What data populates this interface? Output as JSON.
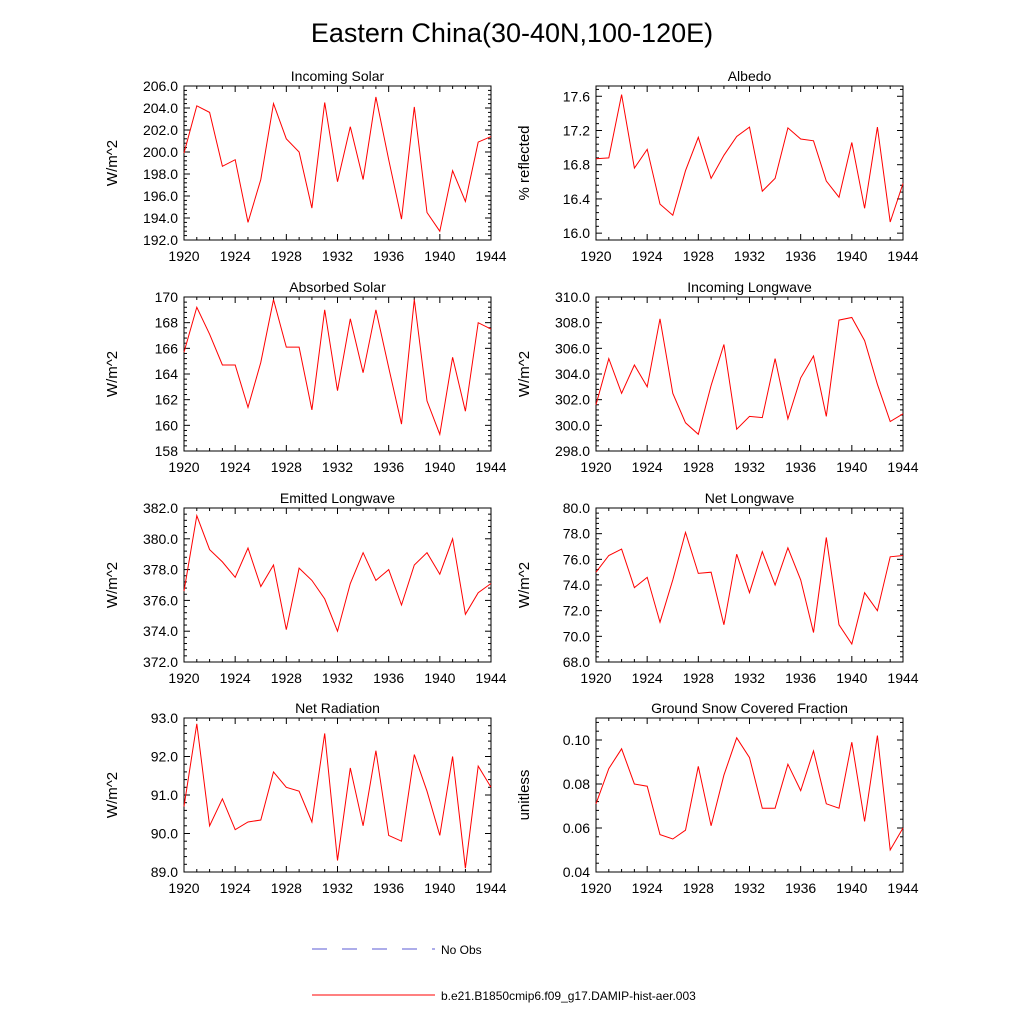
{
  "figure": {
    "title": "Eastern China(30-40N,100-120E)",
    "legend": [
      {
        "label": "No Obs",
        "color": "#5b5bd6",
        "style": "dashed"
      },
      {
        "label": "b.e21.B1850cmip6.f09_g17.DAMIP-hist-aer.003",
        "color": "#ff0000",
        "style": "solid"
      }
    ]
  },
  "chart_data": [
    {
      "type": "line",
      "title": "Incoming Solar",
      "ylabel": "W/m^2",
      "xlim": [
        1920,
        1944
      ],
      "ylim": [
        192.0,
        206.0
      ],
      "xticks": [
        1920,
        1924,
        1928,
        1932,
        1936,
        1940,
        1944
      ],
      "xtick_labels": [
        "1920",
        "1924",
        "1928",
        "1932",
        "1936",
        "1940",
        "1944"
      ],
      "yticks": [
        192,
        194,
        196,
        198,
        200,
        202,
        204,
        206
      ],
      "ytick_labels": [
        "192.0",
        "194.0",
        "196.0",
        "198.0",
        "200.0",
        "202.0",
        "204.0",
        "206.0"
      ],
      "x": [
        1920,
        1921,
        1922,
        1923,
        1924,
        1925,
        1926,
        1927,
        1928,
        1929,
        1930,
        1931,
        1932,
        1933,
        1934,
        1935,
        1936,
        1937,
        1938,
        1939,
        1940,
        1941,
        1942,
        1943,
        1944
      ],
      "series": [
        {
          "name": "b.e21.B1850cmip6.f09_g17.DAMIP-hist-aer.003",
          "color": "#ff0000",
          "values": [
            199.9,
            204.2,
            203.6,
            198.7,
            199.3,
            193.6,
            197.5,
            204.4,
            201.2,
            200.0,
            194.9,
            204.5,
            197.3,
            202.3,
            197.5,
            205.0,
            199.3,
            193.9,
            204.1,
            194.5,
            192.8,
            198.3,
            195.5,
            200.9,
            201.4
          ]
        }
      ]
    },
    {
      "type": "line",
      "title": "Albedo",
      "ylabel": "% reflected",
      "xlim": [
        1920,
        1944
      ],
      "ylim": [
        15.92,
        17.72
      ],
      "xticks": [
        1920,
        1924,
        1928,
        1932,
        1936,
        1940,
        1944
      ],
      "xtick_labels": [
        "1920",
        "1924",
        "1928",
        "1932",
        "1936",
        "1940",
        "1944"
      ],
      "yticks": [
        16.0,
        16.4,
        16.8,
        17.2,
        17.6
      ],
      "ytick_labels": [
        "16.0",
        "16.4",
        "16.8",
        "17.2",
        "17.6"
      ],
      "x": [
        1920,
        1921,
        1922,
        1923,
        1924,
        1925,
        1926,
        1927,
        1928,
        1929,
        1930,
        1931,
        1932,
        1933,
        1934,
        1935,
        1936,
        1937,
        1938,
        1939,
        1940,
        1941,
        1942,
        1943,
        1944
      ],
      "series": [
        {
          "name": "b.e21.B1850cmip6.f09_g17.DAMIP-hist-aer.003",
          "color": "#ff0000",
          "values": [
            16.87,
            16.88,
            17.62,
            16.76,
            16.98,
            16.34,
            16.21,
            16.73,
            17.12,
            16.64,
            16.91,
            17.13,
            17.24,
            16.49,
            16.64,
            17.23,
            17.1,
            17.08,
            16.61,
            16.42,
            17.06,
            16.29,
            17.24,
            16.13,
            16.58
          ]
        }
      ]
    },
    {
      "type": "line",
      "title": "Absorbed Solar",
      "ylabel": "W/m^2",
      "xlim": [
        1920,
        1944
      ],
      "ylim": [
        158,
        170
      ],
      "xticks": [
        1920,
        1924,
        1928,
        1932,
        1936,
        1940,
        1944
      ],
      "xtick_labels": [
        "1920",
        "1924",
        "1928",
        "1932",
        "1936",
        "1940",
        "1944"
      ],
      "yticks": [
        158,
        160,
        162,
        164,
        166,
        168,
        170
      ],
      "ytick_labels": [
        "158",
        "160",
        "162",
        "164",
        "166",
        "168",
        "170"
      ],
      "x": [
        1920,
        1921,
        1922,
        1923,
        1924,
        1925,
        1926,
        1927,
        1928,
        1929,
        1930,
        1931,
        1932,
        1933,
        1934,
        1935,
        1936,
        1937,
        1938,
        1939,
        1940,
        1941,
        1942,
        1943,
        1944
      ],
      "series": [
        {
          "name": "b.e21.B1850cmip6.f09_g17.DAMIP-hist-aer.003",
          "color": "#ff0000",
          "values": [
            165.7,
            169.2,
            167.1,
            164.7,
            164.7,
            161.4,
            164.9,
            169.8,
            166.1,
            166.1,
            161.2,
            169.0,
            162.7,
            168.3,
            164.1,
            169.0,
            164.5,
            160.1,
            169.8,
            161.9,
            159.3,
            165.3,
            161.1,
            168.0,
            167.5
          ]
        }
      ]
    },
    {
      "type": "line",
      "title": "Incoming Longwave",
      "ylabel": "W/m^2",
      "xlim": [
        1920,
        1944
      ],
      "ylim": [
        298.0,
        310.0
      ],
      "xticks": [
        1920,
        1924,
        1928,
        1932,
        1936,
        1940,
        1944
      ],
      "xtick_labels": [
        "1920",
        "1924",
        "1928",
        "1932",
        "1936",
        "1940",
        "1944"
      ],
      "yticks": [
        298,
        300,
        302,
        304,
        306,
        308,
        310
      ],
      "ytick_labels": [
        "298.0",
        "300.0",
        "302.0",
        "304.0",
        "306.0",
        "308.0",
        "310.0"
      ],
      "x": [
        1920,
        1921,
        1922,
        1923,
        1924,
        1925,
        1926,
        1927,
        1928,
        1929,
        1930,
        1931,
        1932,
        1933,
        1934,
        1935,
        1936,
        1937,
        1938,
        1939,
        1940,
        1941,
        1942,
        1943,
        1944
      ],
      "series": [
        {
          "name": "b.e21.B1850cmip6.f09_g17.DAMIP-hist-aer.003",
          "color": "#ff0000",
          "values": [
            301.6,
            305.2,
            302.5,
            304.7,
            303.0,
            308.3,
            302.5,
            300.2,
            299.3,
            303.1,
            306.3,
            299.7,
            300.7,
            300.6,
            305.2,
            300.5,
            303.7,
            305.4,
            300.7,
            308.2,
            308.4,
            306.6,
            303.2,
            300.3,
            300.9
          ]
        }
      ]
    },
    {
      "type": "line",
      "title": "Emitted Longwave",
      "ylabel": "W/m^2",
      "xlim": [
        1920,
        1944
      ],
      "ylim": [
        372.0,
        382.0
      ],
      "xticks": [
        1920,
        1924,
        1928,
        1932,
        1936,
        1940,
        1944
      ],
      "xtick_labels": [
        "1920",
        "1924",
        "1928",
        "1932",
        "1936",
        "1940",
        "1944"
      ],
      "yticks": [
        372,
        374,
        376,
        378,
        380,
        382
      ],
      "ytick_labels": [
        "372.0",
        "374.0",
        "376.0",
        "378.0",
        "380.0",
        "382.0"
      ],
      "x": [
        1920,
        1921,
        1922,
        1923,
        1924,
        1925,
        1926,
        1927,
        1928,
        1929,
        1930,
        1931,
        1932,
        1933,
        1934,
        1935,
        1936,
        1937,
        1938,
        1939,
        1940,
        1941,
        1942,
        1943,
        1944
      ],
      "series": [
        {
          "name": "b.e21.B1850cmip6.f09_g17.DAMIP-hist-aer.003",
          "color": "#ff0000",
          "values": [
            376.6,
            381.5,
            379.3,
            378.5,
            377.5,
            379.4,
            376.9,
            378.3,
            374.1,
            378.1,
            377.3,
            376.1,
            374.0,
            377.1,
            379.1,
            377.3,
            378.0,
            375.7,
            378.3,
            379.1,
            377.7,
            380.0,
            375.1,
            376.5,
            377.1
          ]
        }
      ]
    },
    {
      "type": "line",
      "title": "Net Longwave",
      "ylabel": "W/m^2",
      "xlim": [
        1920,
        1944
      ],
      "ylim": [
        68.0,
        80.0
      ],
      "xticks": [
        1920,
        1924,
        1928,
        1932,
        1936,
        1940,
        1944
      ],
      "xtick_labels": [
        "1920",
        "1924",
        "1928",
        "1932",
        "1936",
        "1940",
        "1944"
      ],
      "yticks": [
        68,
        70,
        72,
        74,
        76,
        78,
        80
      ],
      "ytick_labels": [
        "68.0",
        "70.0",
        "72.0",
        "74.0",
        "76.0",
        "78.0",
        "80.0"
      ],
      "x": [
        1920,
        1921,
        1922,
        1923,
        1924,
        1925,
        1926,
        1927,
        1928,
        1929,
        1930,
        1931,
        1932,
        1933,
        1934,
        1935,
        1936,
        1937,
        1938,
        1939,
        1940,
        1941,
        1942,
        1943,
        1944
      ],
      "series": [
        {
          "name": "b.e21.B1850cmip6.f09_g17.DAMIP-hist-aer.003",
          "color": "#ff0000",
          "values": [
            75.0,
            76.3,
            76.8,
            73.8,
            74.6,
            71.1,
            74.4,
            78.1,
            74.9,
            75.0,
            70.9,
            76.4,
            73.4,
            76.6,
            74.0,
            76.9,
            74.4,
            70.3,
            77.7,
            70.9,
            69.4,
            73.4,
            72.0,
            76.2,
            76.3
          ]
        }
      ]
    },
    {
      "type": "line",
      "title": "Net Radiation",
      "ylabel": "W/m^2",
      "xlim": [
        1920,
        1944
      ],
      "ylim": [
        89.0,
        93.0
      ],
      "xticks": [
        1920,
        1924,
        1928,
        1932,
        1936,
        1940,
        1944
      ],
      "xtick_labels": [
        "1920",
        "1924",
        "1928",
        "1932",
        "1936",
        "1940",
        "1944"
      ],
      "yticks": [
        89,
        90,
        91,
        92,
        93
      ],
      "ytick_labels": [
        "89.0",
        "90.0",
        "91.0",
        "92.0",
        "93.0"
      ],
      "x": [
        1920,
        1921,
        1922,
        1923,
        1924,
        1925,
        1926,
        1927,
        1928,
        1929,
        1930,
        1931,
        1932,
        1933,
        1934,
        1935,
        1936,
        1937,
        1938,
        1939,
        1940,
        1941,
        1942,
        1943,
        1944
      ],
      "series": [
        {
          "name": "b.e21.B1850cmip6.f09_g17.DAMIP-hist-aer.003",
          "color": "#ff0000",
          "values": [
            90.7,
            92.85,
            90.2,
            90.9,
            90.1,
            90.3,
            90.35,
            91.6,
            91.2,
            91.1,
            90.3,
            92.6,
            89.3,
            91.7,
            90.2,
            92.15,
            89.95,
            89.8,
            92.05,
            91.1,
            89.95,
            92.0,
            89.1,
            91.75,
            91.2
          ]
        }
      ]
    },
    {
      "type": "line",
      "title": "Ground Snow Covered Fraction",
      "ylabel": "unitless",
      "xlim": [
        1920,
        1944
      ],
      "ylim": [
        0.04,
        0.11
      ],
      "xticks": [
        1920,
        1924,
        1928,
        1932,
        1936,
        1940,
        1944
      ],
      "xtick_labels": [
        "1920",
        "1924",
        "1928",
        "1932",
        "1936",
        "1940",
        "1944"
      ],
      "yticks": [
        0.04,
        0.06,
        0.08,
        0.1
      ],
      "ytick_labels": [
        "0.04",
        "0.06",
        "0.08",
        "0.10"
      ],
      "x": [
        1920,
        1921,
        1922,
        1923,
        1924,
        1925,
        1926,
        1927,
        1928,
        1929,
        1930,
        1931,
        1932,
        1933,
        1934,
        1935,
        1936,
        1937,
        1938,
        1939,
        1940,
        1941,
        1942,
        1943,
        1944
      ],
      "series": [
        {
          "name": "b.e21.B1850cmip6.f09_g17.DAMIP-hist-aer.003",
          "color": "#ff0000",
          "values": [
            0.071,
            0.087,
            0.096,
            0.08,
            0.079,
            0.057,
            0.055,
            0.059,
            0.088,
            0.061,
            0.084,
            0.101,
            0.092,
            0.069,
            0.069,
            0.089,
            0.077,
            0.095,
            0.071,
            0.069,
            0.099,
            0.063,
            0.102,
            0.05,
            0.06
          ]
        }
      ]
    }
  ]
}
